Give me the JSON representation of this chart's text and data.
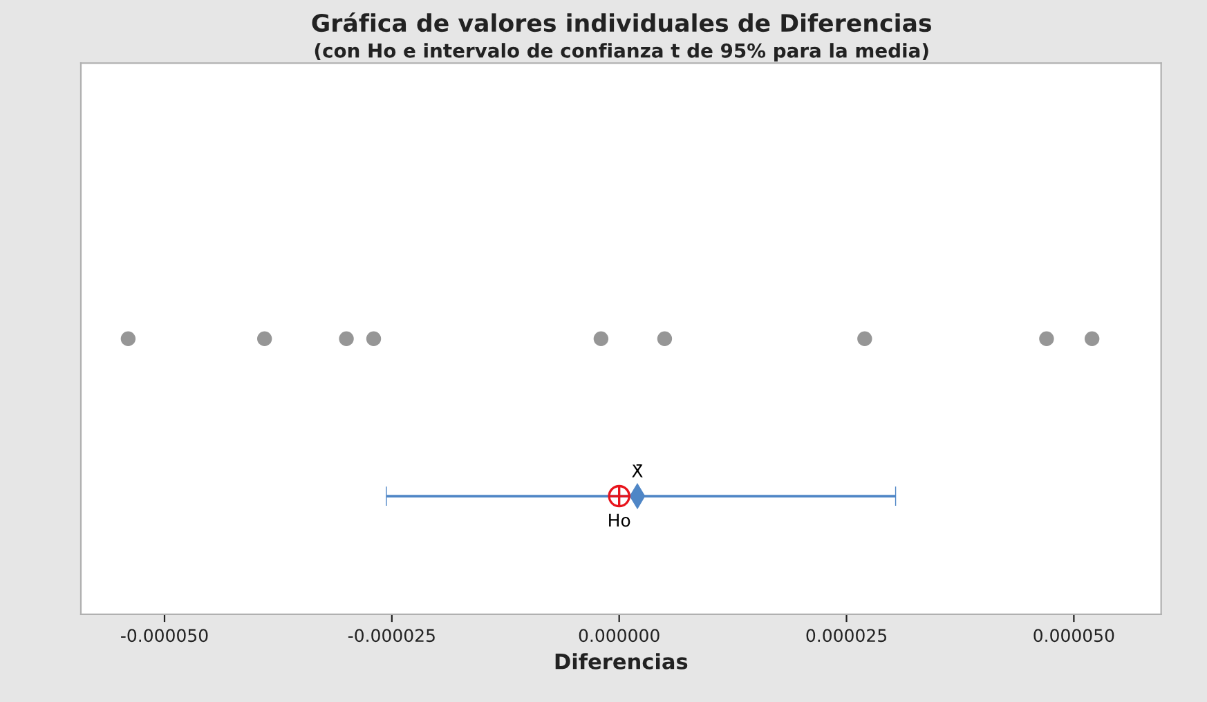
{
  "chart_data": {
    "type": "scatter",
    "orientation": "horizontal",
    "title": "Gráfica de valores individuales de Diferencias",
    "subtitle": "(con Ho e intervalo de confianza t de 95% para la media)",
    "xlabel": "Diferencias",
    "categories": [
      null,
      null,
      null,
      null,
      null,
      null,
      null
    ],
    "xlim": [
      -5.92e-05,
      5.96e-05
    ],
    "xticks": [
      {
        "value": -5e-05,
        "label": "-0.000050"
      },
      {
        "value": -2.5e-05,
        "label": "-0.000025"
      },
      {
        "value": 0,
        "label": "0.000000"
      },
      {
        "value": 2.5e-05,
        "label": "0.000025"
      },
      {
        "value": 5e-05,
        "label": "0.000050"
      }
    ],
    "tick_labels": "x",
    "series": [
      {
        "color": "#969696",
        "marker": "circle",
        "values": [
          null,
          null,
          null,
          -5.4e-05,
          null,
          null,
          null
        ]
      },
      {
        "color": "#969696",
        "marker": "circle",
        "values": [
          null,
          null,
          null,
          -3.9e-05,
          null,
          null,
          null
        ]
      },
      {
        "color": "#969696",
        "marker": "circle",
        "values": [
          null,
          null,
          null,
          -3e-05,
          null,
          null,
          null
        ]
      },
      {
        "color": "#969696",
        "marker": "circle",
        "values": [
          null,
          null,
          null,
          -2.7e-05,
          null,
          null,
          null
        ]
      },
      {
        "color": "#969696",
        "marker": "circle",
        "values": [
          null,
          null,
          null,
          -2e-06,
          null,
          null,
          null
        ]
      },
      {
        "color": "#969696",
        "marker": "circle",
        "values": [
          null,
          null,
          null,
          5e-06,
          null,
          null,
          null
        ]
      },
      {
        "color": "#969696",
        "marker": "circle",
        "values": [
          null,
          null,
          null,
          2.7e-05,
          null,
          null,
          null
        ]
      },
      {
        "color": "#969696",
        "marker": "circle",
        "values": [
          null,
          null,
          null,
          4.7e-05,
          null,
          null,
          null
        ]
      },
      {
        "color": "#969696",
        "marker": "circle",
        "values": [
          null,
          null,
          null,
          5.2e-05,
          null,
          null,
          null
        ]
      },
      {
        "name": "X̄",
        "color": "#4f86c6",
        "marker": "diamond",
        "values": [
          null,
          null,
          null,
          null,
          null,
          2e-06,
          null
        ],
        "errors": [
          null,
          null,
          null,
          null,
          null,
          [
            -2.56e-05,
            3.04e-05
          ],
          null
        ]
      },
      {
        "name": "Ho",
        "color": "#e8141c",
        "marker": "cross",
        "values": [
          null,
          null,
          null,
          null,
          null,
          0,
          null
        ]
      }
    ]
  }
}
